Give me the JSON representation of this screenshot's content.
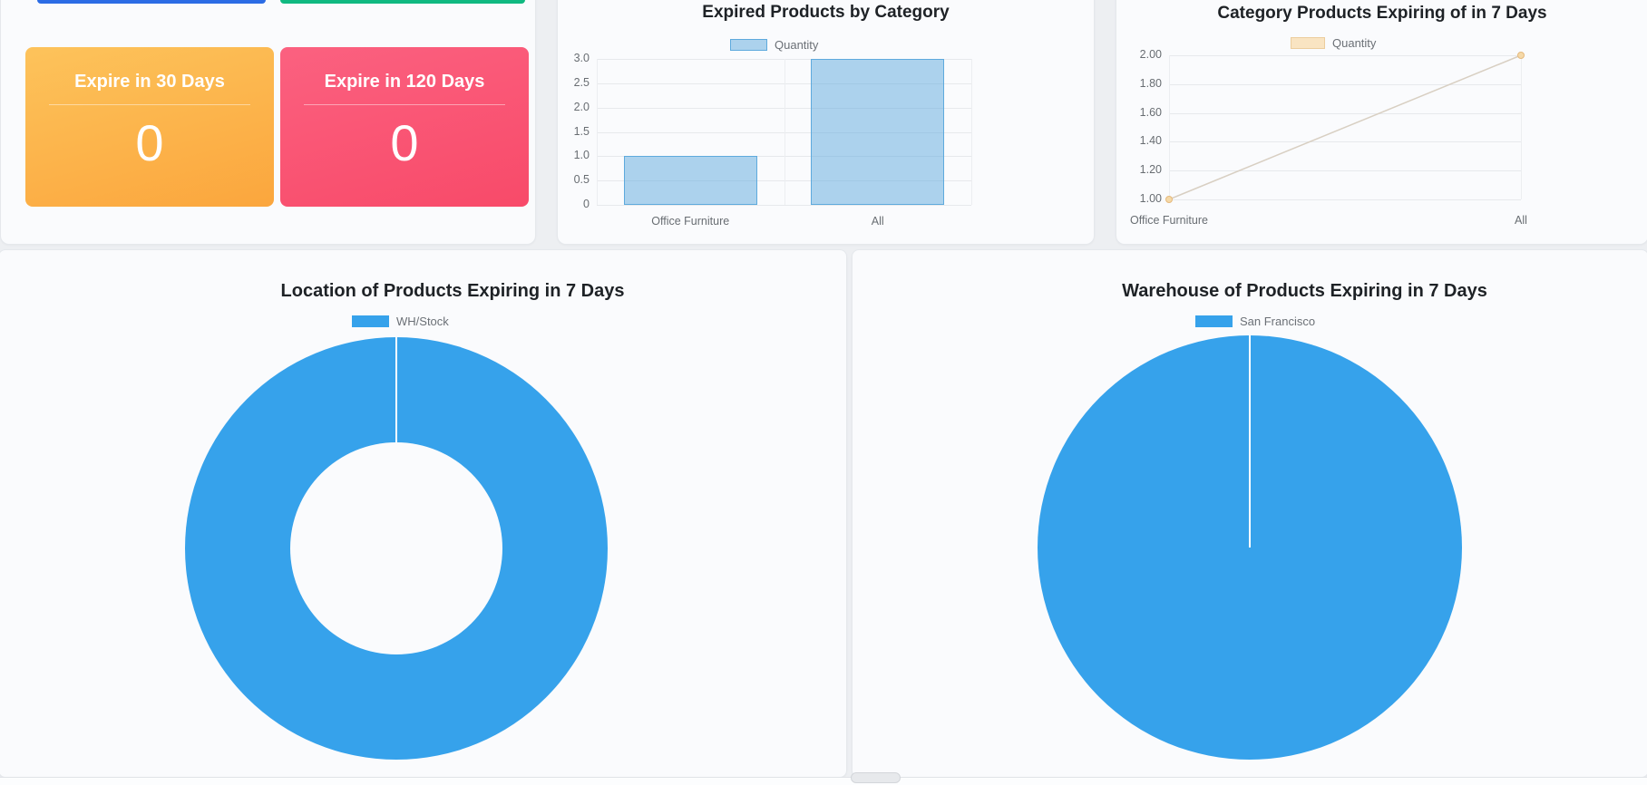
{
  "theme": {
    "page_bg": "#edeff2",
    "card_bg": "#fafbfd",
    "accent_blue_strip": "#2b6ce5",
    "accent_green_strip": "#10b981",
    "pie_color": "#36a2eb",
    "bar_fill": "rgba(94,170,221,0.5)",
    "bar_border": "#5eaadd",
    "line_color": "#d8cfc2",
    "line_point_fill": "#f5d9a8",
    "line_point_border": "#e5b97c",
    "line_legend_fill": "#f9e4c2",
    "line_legend_border": "#eccd9d"
  },
  "kpi": {
    "cards": [
      {
        "label": "Expire in 30 Days",
        "value": "0",
        "gradient_from": "#fdc35b",
        "gradient_to": "#fba63d"
      },
      {
        "label": "Expire in 120 Days",
        "value": "0",
        "gradient_from": "#fb6180",
        "gradient_to": "#f84a69"
      }
    ]
  },
  "chart_data": [
    {
      "type": "bar",
      "title": "Expired Products by Category",
      "legend": "Quantity",
      "categories": [
        "Office Furniture",
        "All"
      ],
      "values": [
        1,
        3
      ],
      "ylim": [
        0,
        3
      ],
      "ytick_labels": [
        "3.0",
        "2.5",
        "2.0",
        "1.5",
        "1.0",
        "0.5",
        "0"
      ],
      "grid": true,
      "legend_position": "top"
    },
    {
      "type": "line",
      "title": "Category Products Expiring of in 7 Days",
      "legend": "Quantity",
      "categories": [
        "Office Furniture",
        "All"
      ],
      "values": [
        1,
        2
      ],
      "ylim": [
        1,
        2
      ],
      "ytick_labels": [
        "2.00",
        "1.80",
        "1.60",
        "1.40",
        "1.20",
        "1.00"
      ],
      "grid": true,
      "legend_position": "top"
    },
    {
      "type": "doughnut",
      "title": "Location of Products Expiring in 7 Days",
      "legend": "WH/Stock",
      "labels": [
        "WH/Stock"
      ],
      "values": [
        100
      ],
      "color": "#36a2eb",
      "legend_position": "top"
    },
    {
      "type": "pie",
      "title": "Warehouse of Products Expiring in 7 Days",
      "legend": "San Francisco",
      "labels": [
        "San Francisco"
      ],
      "values": [
        100
      ],
      "color": "#36a2eb",
      "legend_position": "top"
    }
  ]
}
